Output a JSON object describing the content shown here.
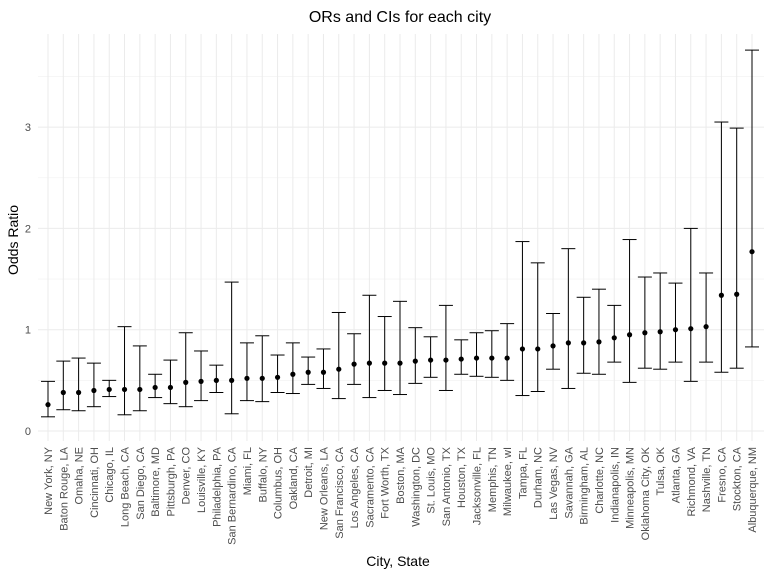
{
  "chart_data": {
    "type": "errorbar",
    "title": "ORs and CIs for each city",
    "xlabel": "City, State",
    "ylabel": "Odds Ratio",
    "ylim": [
      -0.1,
      3.8
    ],
    "yticks": [
      0,
      1,
      2,
      3
    ],
    "grid": true,
    "legend": "none",
    "points": [
      {
        "city": "New York, NY",
        "or": 0.26,
        "lo": 0.14,
        "hi": 0.49
      },
      {
        "city": "Baton Rouge, LA",
        "or": 0.38,
        "lo": 0.21,
        "hi": 0.69
      },
      {
        "city": "Omaha, NE",
        "or": 0.38,
        "lo": 0.2,
        "hi": 0.72
      },
      {
        "city": "Cincinnati, OH",
        "or": 0.4,
        "lo": 0.24,
        "hi": 0.67
      },
      {
        "city": "Chicago, IL",
        "or": 0.41,
        "lo": 0.34,
        "hi": 0.5
      },
      {
        "city": "Long Beach, CA",
        "or": 0.41,
        "lo": 0.16,
        "hi": 1.03
      },
      {
        "city": "San Diego, CA",
        "or": 0.41,
        "lo": 0.2,
        "hi": 0.84
      },
      {
        "city": "Baltimore, MD",
        "or": 0.43,
        "lo": 0.33,
        "hi": 0.56
      },
      {
        "city": "Pittsburgh, PA",
        "or": 0.43,
        "lo": 0.27,
        "hi": 0.7
      },
      {
        "city": "Denver, CO",
        "or": 0.48,
        "lo": 0.24,
        "hi": 0.97
      },
      {
        "city": "Louisville, KY",
        "or": 0.49,
        "lo": 0.3,
        "hi": 0.79
      },
      {
        "city": "Philadelphia, PA",
        "or": 0.5,
        "lo": 0.38,
        "hi": 0.65
      },
      {
        "city": "San Bernardino, CA",
        "or": 0.5,
        "lo": 0.17,
        "hi": 1.47
      },
      {
        "city": "Miami, FL",
        "or": 0.52,
        "lo": 0.3,
        "hi": 0.87
      },
      {
        "city": "Buffalo, NY",
        "or": 0.52,
        "lo": 0.29,
        "hi": 0.94
      },
      {
        "city": "Columbus, OH",
        "or": 0.53,
        "lo": 0.38,
        "hi": 0.75
      },
      {
        "city": "Oakland, CA",
        "or": 0.56,
        "lo": 0.37,
        "hi": 0.87
      },
      {
        "city": "Detroit, MI",
        "or": 0.58,
        "lo": 0.46,
        "hi": 0.73
      },
      {
        "city": "New Orleans, LA",
        "or": 0.58,
        "lo": 0.42,
        "hi": 0.81
      },
      {
        "city": "San Francisco, CA",
        "or": 0.61,
        "lo": 0.32,
        "hi": 1.17
      },
      {
        "city": "Los Angeles, CA",
        "or": 0.66,
        "lo": 0.46,
        "hi": 0.96
      },
      {
        "city": "Sacramento, CA",
        "or": 0.67,
        "lo": 0.33,
        "hi": 1.34
      },
      {
        "city": "Fort Worth, TX",
        "or": 0.67,
        "lo": 0.4,
        "hi": 1.13
      },
      {
        "city": "Boston, MA",
        "or": 0.67,
        "lo": 0.36,
        "hi": 1.28
      },
      {
        "city": "Washington, DC",
        "or": 0.69,
        "lo": 0.47,
        "hi": 1.02
      },
      {
        "city": "St. Louis, MO",
        "or": 0.7,
        "lo": 0.53,
        "hi": 0.93
      },
      {
        "city": "San Antonio, TX",
        "or": 0.7,
        "lo": 0.4,
        "hi": 1.24
      },
      {
        "city": "Houston, TX",
        "or": 0.71,
        "lo": 0.56,
        "hi": 0.9
      },
      {
        "city": "Jacksonville, FL",
        "or": 0.72,
        "lo": 0.54,
        "hi": 0.97
      },
      {
        "city": "Memphis, TN",
        "or": 0.72,
        "lo": 0.53,
        "hi": 0.99
      },
      {
        "city": "Milwaukee, wI",
        "or": 0.72,
        "lo": 0.5,
        "hi": 1.06
      },
      {
        "city": "Tampa, FL",
        "or": 0.81,
        "lo": 0.35,
        "hi": 1.87
      },
      {
        "city": "Durham, NC",
        "or": 0.81,
        "lo": 0.39,
        "hi": 1.66
      },
      {
        "city": "Las Vegas, NV",
        "or": 0.84,
        "lo": 0.61,
        "hi": 1.16
      },
      {
        "city": "Savannah, GA",
        "or": 0.87,
        "lo": 0.42,
        "hi": 1.8
      },
      {
        "city": "Birmingham, AL",
        "or": 0.87,
        "lo": 0.57,
        "hi": 1.32
      },
      {
        "city": "Charlotte, NC",
        "or": 0.88,
        "lo": 0.56,
        "hi": 1.4
      },
      {
        "city": "Indianapolis, IN",
        "or": 0.92,
        "lo": 0.68,
        "hi": 1.24
      },
      {
        "city": "Minneapolis, MN",
        "or": 0.95,
        "lo": 0.48,
        "hi": 1.89
      },
      {
        "city": "Oklahoma City, OK",
        "or": 0.97,
        "lo": 0.62,
        "hi": 1.52
      },
      {
        "city": "Tulsa, OK",
        "or": 0.98,
        "lo": 0.61,
        "hi": 1.56
      },
      {
        "city": "Atlanta, GA",
        "or": 1.0,
        "lo": 0.68,
        "hi": 1.46
      },
      {
        "city": "Richmond, VA",
        "or": 1.01,
        "lo": 0.49,
        "hi": 2.0
      },
      {
        "city": "Nashville, TN",
        "or": 1.03,
        "lo": 0.68,
        "hi": 1.56
      },
      {
        "city": "Fresno, CA",
        "or": 1.34,
        "lo": 0.58,
        "hi": 3.05
      },
      {
        "city": "Stockton, CA",
        "or": 1.35,
        "lo": 0.62,
        "hi": 2.99
      },
      {
        "city": "Albuquerque, NM",
        "or": 1.77,
        "lo": 0.83,
        "hi": 3.76
      }
    ]
  }
}
